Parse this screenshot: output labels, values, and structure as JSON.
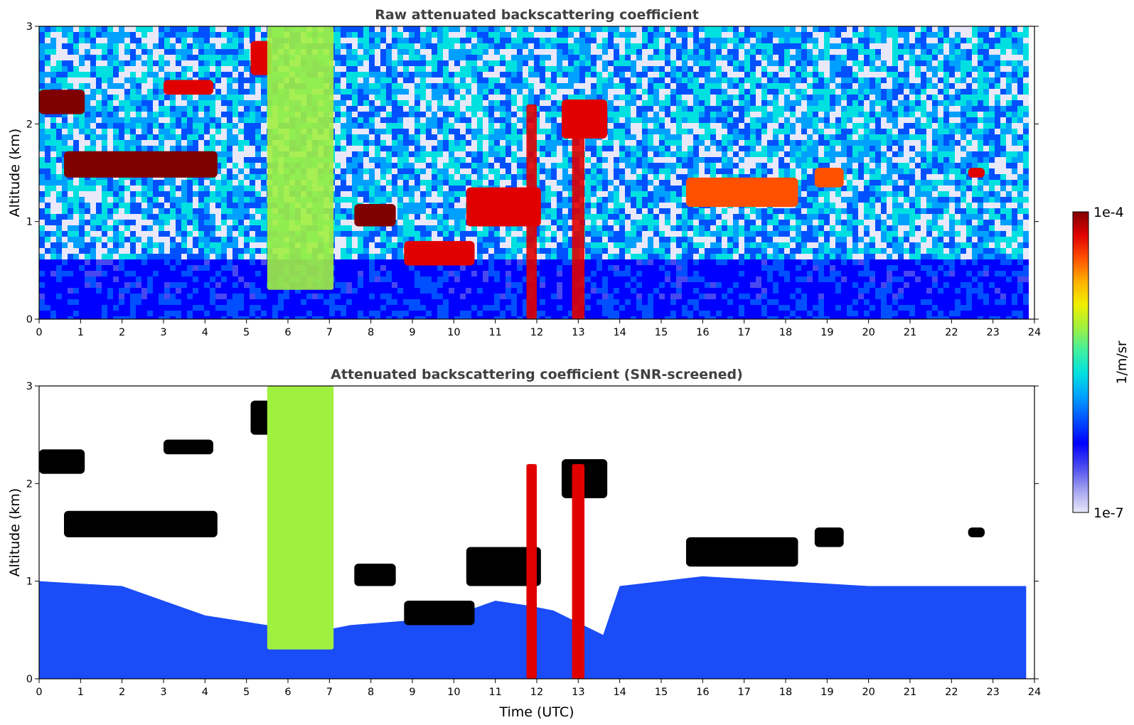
{
  "chart_data": [
    {
      "type": "heatmap",
      "title": "Raw attenuated backscattering coefficient",
      "xlabel": "",
      "ylabel": "Altitude (km)",
      "xlim": [
        0,
        24
      ],
      "ylim": [
        0,
        3
      ],
      "xticks": [
        "0",
        "1",
        "2",
        "3",
        "4",
        "5",
        "6",
        "7",
        "8",
        "9",
        "10",
        "11",
        "12",
        "13",
        "14",
        "15",
        "16",
        "17",
        "18",
        "19",
        "20",
        "21",
        "22",
        "23",
        "24"
      ],
      "yticks": [
        "0",
        "1",
        "2",
        "3"
      ],
      "grid": false,
      "data_end_hour": 23.8,
      "features": [
        {
          "name": "cloud layer",
          "t0": 0.0,
          "t1": 1.1,
          "alt_top": 2.35,
          "alt_bottom": 2.1,
          "intensity": 1.0
        },
        {
          "name": "cloud layer",
          "t0": 0.6,
          "t1": 4.3,
          "alt_top": 1.72,
          "alt_bottom": 1.45,
          "intensity": 1.0
        },
        {
          "name": "cloud layer",
          "t0": 3.0,
          "t1": 4.2,
          "alt_top": 2.45,
          "alt_bottom": 2.3,
          "intensity": 0.95
        },
        {
          "name": "cloud layer",
          "t0": 5.1,
          "t1": 5.6,
          "alt_top": 2.85,
          "alt_bottom": 2.5,
          "intensity": 0.95
        },
        {
          "name": "cloud layer",
          "t0": 7.6,
          "t1": 8.6,
          "alt_top": 1.18,
          "alt_bottom": 0.95,
          "intensity": 1.0
        },
        {
          "name": "cloud layer",
          "t0": 8.8,
          "t1": 10.5,
          "alt_top": 0.8,
          "alt_bottom": 0.55,
          "intensity": 0.95
        },
        {
          "name": "cloud layer",
          "t0": 10.3,
          "t1": 12.1,
          "alt_top": 1.35,
          "alt_bottom": 0.95,
          "intensity": 0.95
        },
        {
          "name": "cloud layer",
          "t0": 12.6,
          "t1": 13.7,
          "alt_top": 2.25,
          "alt_bottom": 1.85,
          "intensity": 0.95
        },
        {
          "name": "cloud layer",
          "t0": 15.6,
          "t1": 18.3,
          "alt_top": 1.45,
          "alt_bottom": 1.15,
          "intensity": 0.85
        },
        {
          "name": "cloud layer",
          "t0": 18.7,
          "t1": 19.4,
          "alt_top": 1.55,
          "alt_bottom": 1.35,
          "intensity": 0.85
        },
        {
          "name": "cloud layer",
          "t0": 22.4,
          "t1": 22.8,
          "alt_top": 1.55,
          "alt_bottom": 1.45,
          "intensity": 0.9
        },
        {
          "name": "precipitation shaft",
          "t0": 5.5,
          "t1": 7.1,
          "alt_top": 3.0,
          "alt_bottom": 0.3,
          "intensity": 0.65
        },
        {
          "name": "precipitation shaft",
          "t0": 11.75,
          "t1": 12.0,
          "alt_top": 2.2,
          "alt_bottom": 0.0,
          "intensity": 0.9
        },
        {
          "name": "precipitation shaft",
          "t0": 12.85,
          "t1": 13.15,
          "alt_top": 2.2,
          "alt_bottom": 0.0,
          "intensity": 0.9
        }
      ]
    },
    {
      "type": "heatmap",
      "title": "Attenuated backscattering coefficient (SNR-screened)",
      "xlabel": "Time (UTC)",
      "ylabel": "Altitude (km)",
      "xlim": [
        0,
        24
      ],
      "ylim": [
        0,
        3
      ],
      "xticks": [
        "0",
        "1",
        "2",
        "3",
        "4",
        "5",
        "6",
        "7",
        "8",
        "9",
        "10",
        "11",
        "12",
        "13",
        "14",
        "15",
        "16",
        "17",
        "18",
        "19",
        "20",
        "21",
        "22",
        "23",
        "24"
      ],
      "yticks": [
        "0",
        "1",
        "2",
        "3"
      ],
      "grid": false,
      "data_end_hour": 23.8,
      "screened_boundary_layer_top_km": [
        [
          0,
          1.0
        ],
        [
          2,
          0.95
        ],
        [
          4,
          0.65
        ],
        [
          5.5,
          0.55
        ],
        [
          6.3,
          0.45
        ],
        [
          7.5,
          0.55
        ],
        [
          9,
          0.6
        ],
        [
          10,
          0.65
        ],
        [
          11,
          0.8
        ],
        [
          11.8,
          0.75
        ],
        [
          12.4,
          0.7
        ],
        [
          13.6,
          0.45
        ],
        [
          14,
          0.95
        ],
        [
          16,
          1.05
        ],
        [
          18,
          1.0
        ],
        [
          20,
          0.95
        ],
        [
          22,
          0.95
        ],
        [
          23.8,
          0.95
        ]
      ]
    }
  ],
  "colorbar": {
    "label": "1/m/sr",
    "max_label": "1e-4",
    "min_label": "1e-7",
    "scale": "log",
    "colormap": [
      "#e8e8f8",
      "#a0a0f0",
      "#4848f0",
      "#0000ff",
      "#0050ff",
      "#00a0ff",
      "#00e0e0",
      "#40f0a0",
      "#a0f040",
      "#f0f000",
      "#ffb000",
      "#ff5000",
      "#e00000",
      "#800000"
    ]
  }
}
